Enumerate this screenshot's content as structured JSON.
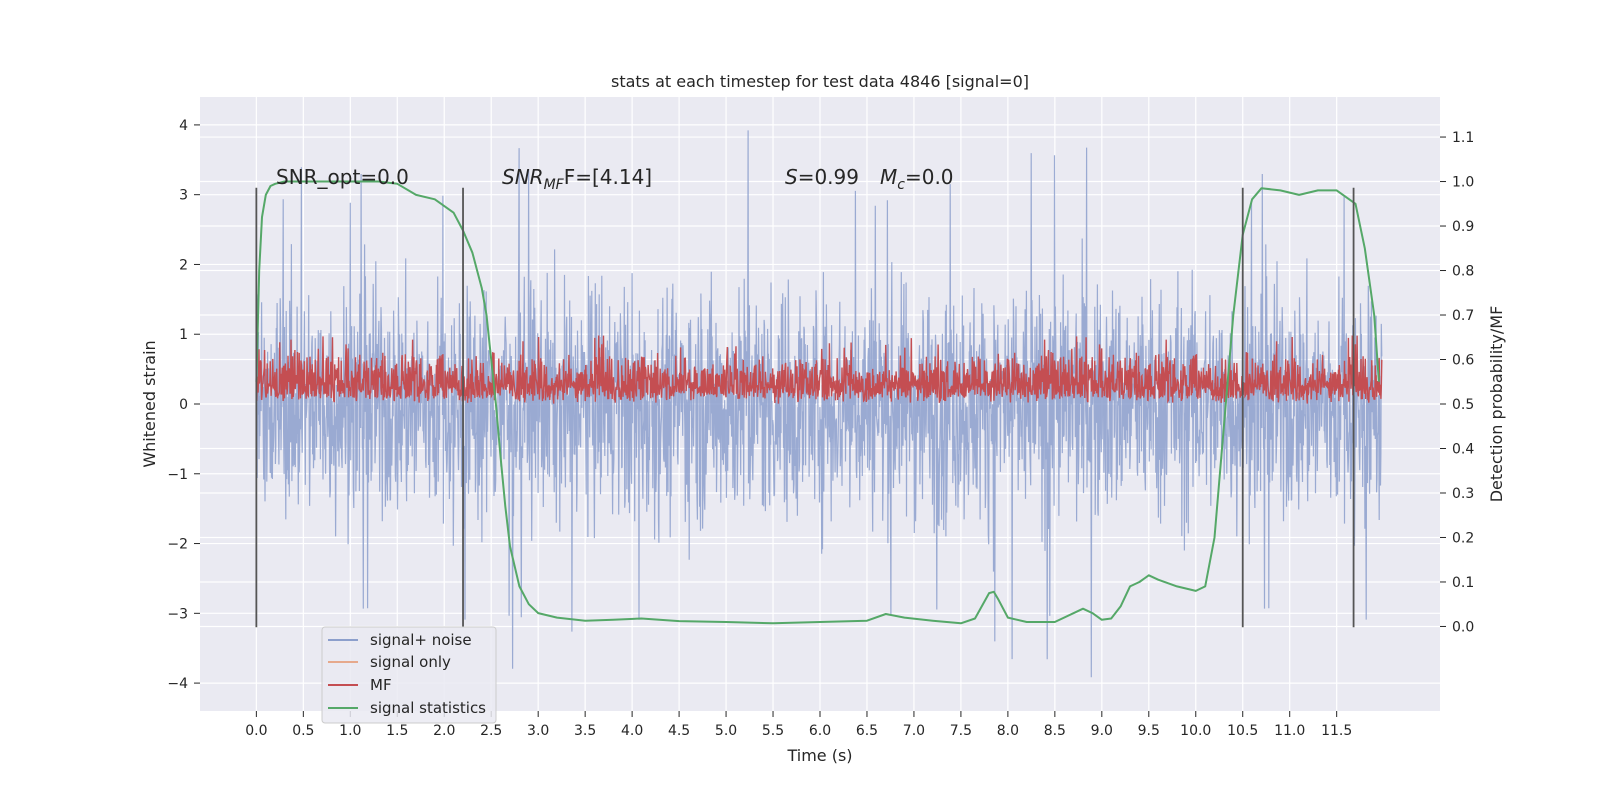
{
  "chart_data": {
    "type": "line",
    "title": "stats at each timestep for test data 4846 [signal=0]",
    "xlabel": "Time (s)",
    "ylabel": "Whitened strain",
    "y2label": "Detection probability/MF",
    "xlim": [
      -0.6,
      12.6
    ],
    "ylim": [
      -4.4,
      4.4
    ],
    "y2lim": [
      -0.19,
      1.19
    ],
    "grid": true,
    "background": "#eaeaf2",
    "x_ticks": [
      "0.0",
      "0.5",
      "1.0",
      "1.5",
      "2.0",
      "2.5",
      "3.0",
      "3.5",
      "4.0",
      "4.5",
      "5.0",
      "5.5",
      "6.0",
      "6.5",
      "7.0",
      "7.5",
      "8.0",
      "8.5",
      "9.0",
      "9.5",
      "10.0",
      "10.5",
      "11.0",
      "11.5"
    ],
    "y_ticks": [
      "4",
      "3",
      "2",
      "1",
      "0",
      "−1",
      "−2",
      "−3",
      "−4"
    ],
    "y2_ticks": [
      "1.1",
      "1.0",
      "0.9",
      "0.8",
      "0.7",
      "0.6",
      "0.5",
      "0.4",
      "0.3",
      "0.2",
      "0.1",
      "0.0"
    ],
    "vertical_lines_x": [
      0.0,
      2.2,
      10.5,
      11.68
    ],
    "vertical_lines_range": [
      -3.2,
      3.1
    ],
    "annotations": {
      "snr_opt": "SNR_opt=0.0",
      "snr_mf_name": "SNR",
      "snr_mf_sub": "MF",
      "snr_mf_value": "F=[4.14]",
      "s_name": "S",
      "s_value": "=0.99",
      "mc_name": "M",
      "mc_sub": "c",
      "mc_value": "=0.0"
    },
    "legend": {
      "placement": "lower-left",
      "entries": [
        {
          "label": "signal+ noise",
          "color": "#8c9fcc"
        },
        {
          "label": "signal only",
          "color": "#e6a98c"
        },
        {
          "label": "MF",
          "color": "#c44e52"
        },
        {
          "label": "signal statistics",
          "color": "#55a868"
        }
      ]
    },
    "series": [
      {
        "name": "signal+ noise",
        "color": "#8c9fcc",
        "x_range": [
          0.0,
          11.98
        ],
        "envelope_upper_typical": 2.0,
        "envelope_lower_typical": -2.2,
        "max": 4.0,
        "min": -4.1
      },
      {
        "name": "MF",
        "color": "#c44e52",
        "x_range": [
          0.0,
          11.98
        ],
        "envelope_upper_typical": 0.55,
        "envelope_lower_typical": 0.0,
        "max": 1.0
      },
      {
        "name": "signal statistics",
        "color": "#55a868",
        "axis": "right",
        "x": [
          0.0,
          0.03,
          0.06,
          0.1,
          0.15,
          0.2,
          0.3,
          0.5,
          1.0,
          1.3,
          1.5,
          1.7,
          1.9,
          2.1,
          2.2,
          2.3,
          2.4,
          2.45,
          2.5,
          2.55,
          2.6,
          2.65,
          2.7,
          2.8,
          2.9,
          3.0,
          3.2,
          3.5,
          3.8,
          4.1,
          4.5,
          5.0,
          5.5,
          6.0,
          6.5,
          6.7,
          6.9,
          7.2,
          7.5,
          7.65,
          7.8,
          7.85,
          7.9,
          8.0,
          8.2,
          8.5,
          8.8,
          8.9,
          9.0,
          9.1,
          9.2,
          9.3,
          9.4,
          9.5,
          9.6,
          9.8,
          10.0,
          10.1,
          10.2,
          10.3,
          10.4,
          10.5,
          10.6,
          10.7,
          10.9,
          11.1,
          11.3,
          11.5,
          11.7,
          11.8,
          11.9,
          11.95
        ],
        "y": [
          0.55,
          0.8,
          0.92,
          0.97,
          0.99,
          0.995,
          1.0,
          1.0,
          1.0,
          1.0,
          0.995,
          0.97,
          0.96,
          0.93,
          0.89,
          0.84,
          0.76,
          0.7,
          0.6,
          0.5,
          0.38,
          0.27,
          0.18,
          0.09,
          0.05,
          0.03,
          0.02,
          0.013,
          0.015,
          0.018,
          0.012,
          0.01,
          0.007,
          0.01,
          0.013,
          0.028,
          0.02,
          0.013,
          0.007,
          0.018,
          0.075,
          0.078,
          0.06,
          0.02,
          0.01,
          0.01,
          0.04,
          0.03,
          0.015,
          0.018,
          0.045,
          0.09,
          0.1,
          0.115,
          0.105,
          0.09,
          0.08,
          0.09,
          0.2,
          0.45,
          0.7,
          0.88,
          0.96,
          0.985,
          0.98,
          0.97,
          0.98,
          0.98,
          0.95,
          0.85,
          0.7,
          0.55
        ]
      }
    ]
  }
}
